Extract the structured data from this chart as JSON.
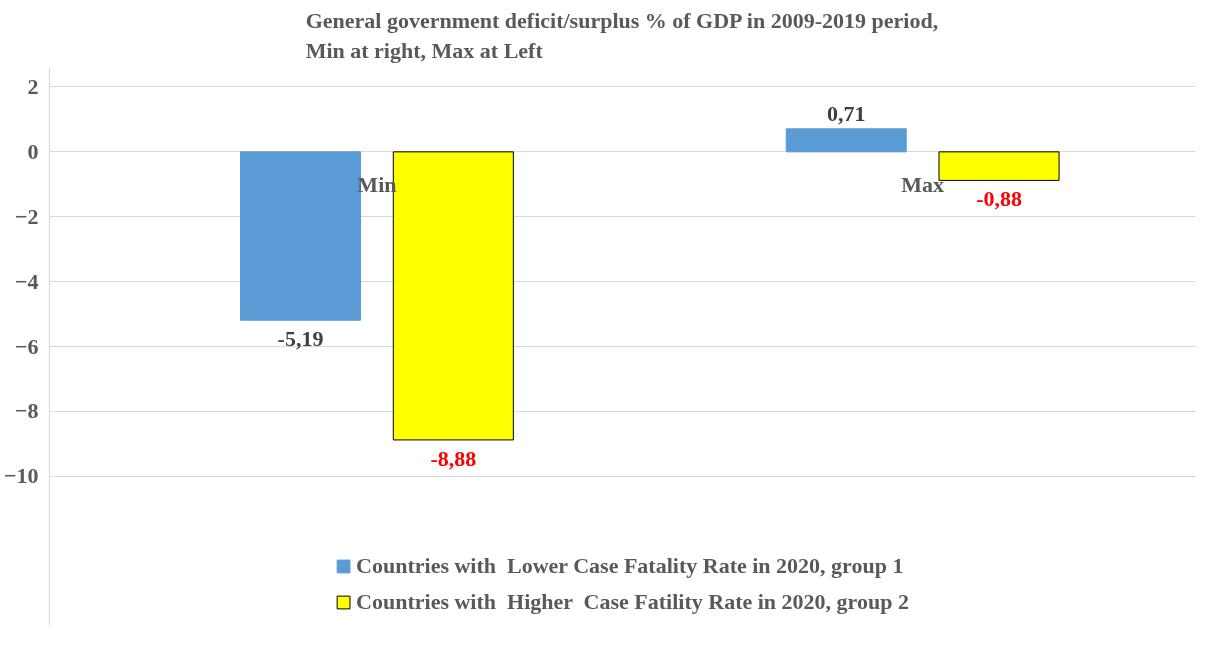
{
  "chart_data": {
    "type": "bar",
    "title": "General government deficit/surplus % of GDP in 2009-2019 period,\nMin at right, Max at Left",
    "categories": [
      "Min",
      "Max"
    ],
    "series": [
      {
        "name": "Countries with  Lower Case Fatality Rate in 2020, group 1",
        "color": "#5b9bd5",
        "values": [
          -5.19,
          0.71
        ],
        "value_labels": [
          "-5,19",
          "0,71"
        ]
      },
      {
        "name": "Countries with  Higher  Case Fatility Rate in 2020, group 2",
        "color": "#ffff00",
        "values": [
          -8.88,
          -0.88
        ],
        "value_labels": [
          "-8,88",
          "-0,88"
        ]
      }
    ],
    "ylim": [
      -14.6,
      2.6
    ],
    "yticks": [
      -10,
      -8,
      -6,
      -4,
      -2,
      0,
      2
    ],
    "grid": "y",
    "legend": "bottom"
  }
}
